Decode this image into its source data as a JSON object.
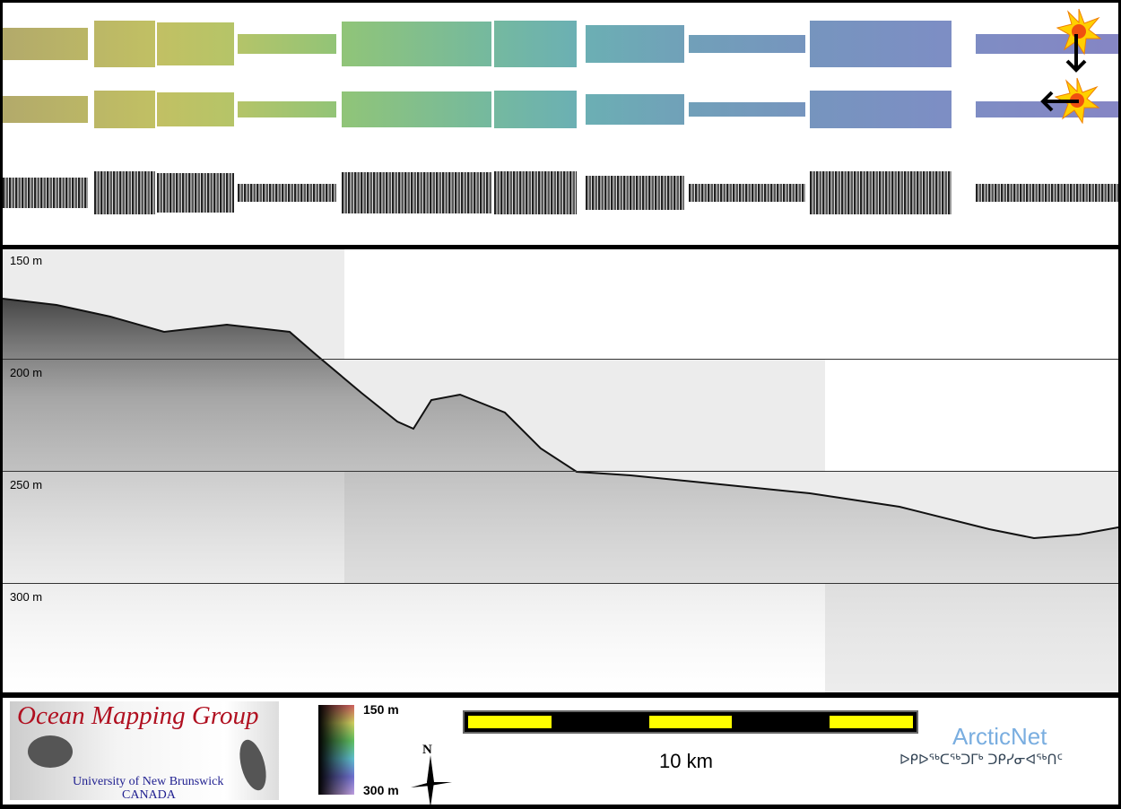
{
  "strips": {
    "rows": [
      "shaded-relief-sun-north",
      "shaded-relief-sun-east",
      "backscatter"
    ]
  },
  "profile": {
    "depth_labels": [
      "150 m",
      "200 m",
      "250 m",
      "300 m"
    ]
  },
  "legend": {
    "logo": {
      "title": "Ocean Mapping Group",
      "line1": "University of New Brunswick",
      "line2": "CANADA"
    },
    "colorbar": {
      "top": "150 m",
      "bottom": "300 m"
    },
    "north": "N",
    "scale": {
      "label": "10 km",
      "segments": 5
    },
    "arcticnet": {
      "name": "ArcticNet",
      "syllabics": "ᐅᑭᐅᖅᑕᖅᑐᒥᒃ ᑐᑭᓯᓂᐊᖅᑎᑦ"
    }
  },
  "colors": {
    "scale_fill": "#ffff00",
    "omg_red": "#b01020",
    "unb_blue": "#202090",
    "arcticnet_blue": "#7aaee0"
  }
}
